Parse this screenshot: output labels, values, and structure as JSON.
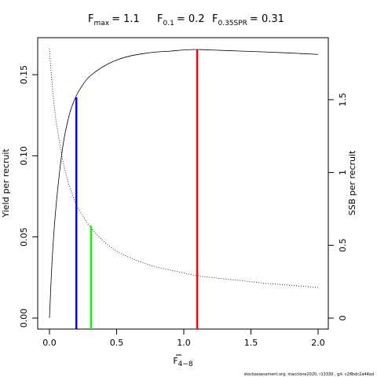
{
  "title": {
    "fmax": {
      "name": "F",
      "sub": "max",
      "value": "= 1.1"
    },
    "f01": {
      "name": "F",
      "sub": "0.1",
      "value": "= 0.2"
    },
    "fspr": {
      "name": "F",
      "sub": "0.35SPR",
      "value": "= 0.31"
    }
  },
  "footer": "stockassessment.org, maccione2020, r13330 , git: c28bdc2a44ad",
  "chart_data": {
    "type": "line",
    "xlabel": {
      "main": "F",
      "sub": "4−8"
    },
    "ylabel_left": "Yield per recruit",
    "ylabel_right": "SSB per recruit",
    "xlim": [
      0,
      2
    ],
    "ylim_left": [
      0,
      0.166
    ],
    "ylim_right": [
      0,
      1.85
    ],
    "x_ticks": [
      0,
      0.5,
      1,
      1.5,
      2
    ],
    "x_tick_labels": [
      "0.0",
      "0.5",
      "1.0",
      "1.5",
      "2.0"
    ],
    "y_ticks_left": [
      0,
      0.05,
      0.1,
      0.15
    ],
    "y_tick_labels_left": [
      "0.00",
      "0.05",
      "0.10",
      "0.15"
    ],
    "y_ticks_right": [
      0,
      0.5,
      1,
      1.5
    ],
    "y_tick_labels_right": [
      "0",
      "0.5",
      "1",
      "1.5"
    ],
    "series": [
      {
        "style": "solid",
        "axis": "left",
        "x": [
          0,
          0.02,
          0.05,
          0.1,
          0.15,
          0.2,
          0.25,
          0.3,
          0.4,
          0.5,
          0.6,
          0.7,
          0.8,
          0.9,
          1.0,
          1.1,
          1.2,
          1.4,
          1.6,
          1.8,
          2.0
        ],
        "y": [
          0,
          0.036,
          0.07,
          0.106,
          0.126,
          0.137,
          0.144,
          0.149,
          0.155,
          0.159,
          0.1615,
          0.163,
          0.164,
          0.1645,
          0.1652,
          0.1655,
          0.1652,
          0.1646,
          0.164,
          0.1633,
          0.1625
        ]
      },
      {
        "style": "dotted",
        "axis": "right",
        "x": [
          0,
          0.02,
          0.05,
          0.1,
          0.15,
          0.2,
          0.25,
          0.3,
          0.4,
          0.5,
          0.6,
          0.7,
          0.8,
          0.9,
          1.0,
          1.1,
          1.2,
          1.4,
          1.6,
          1.8,
          2.0
        ],
        "y": [
          1.85,
          1.6,
          1.35,
          1.08,
          0.9,
          0.78,
          0.7,
          0.63,
          0.53,
          0.46,
          0.415,
          0.38,
          0.35,
          0.33,
          0.31,
          0.29,
          0.28,
          0.26,
          0.24,
          0.225,
          0.21
        ]
      }
    ],
    "reference_lines": [
      {
        "x": 1.1,
        "y": 0.1655,
        "color": "#ff0000"
      },
      {
        "x": 0.2,
        "y": 0.136,
        "color": "#0000ff"
      },
      {
        "x": 0.31,
        "y": 0.057,
        "color": "#00ff00"
      }
    ]
  }
}
